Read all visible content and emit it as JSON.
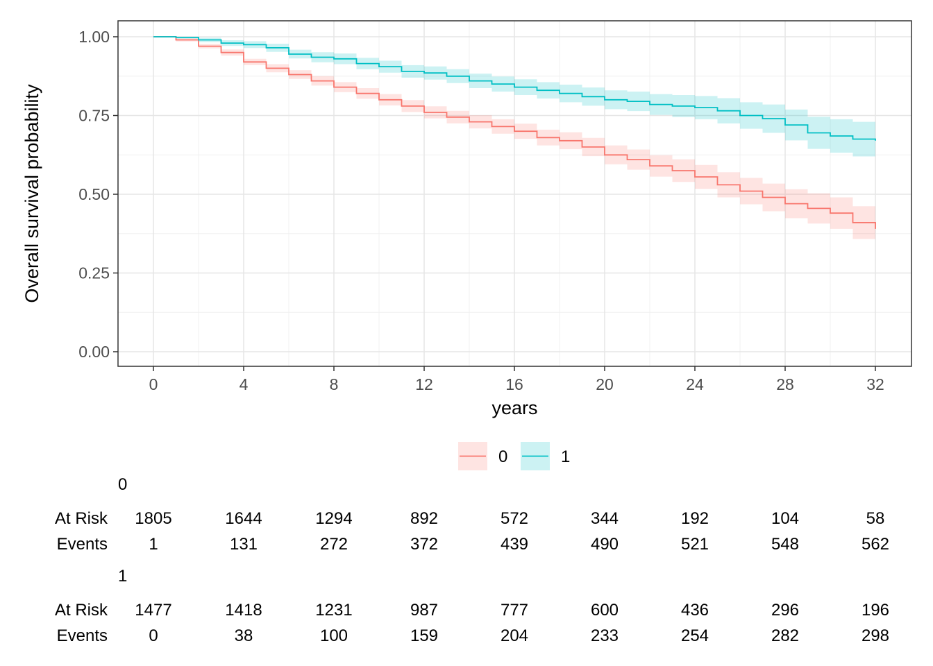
{
  "chart_data": {
    "type": "line",
    "subtype": "kaplan-meier",
    "title": "",
    "xlabel": "years",
    "ylabel": "Overall survival probability",
    "xlim": [
      0,
      32
    ],
    "ylim": [
      0,
      1
    ],
    "x_ticks": [
      0,
      4,
      8,
      12,
      16,
      20,
      24,
      28,
      32
    ],
    "y_ticks": [
      0,
      0.25,
      0.5,
      0.75,
      1.0
    ],
    "y_tick_labels": [
      "0.00",
      "0.25",
      "0.50",
      "0.75",
      "1.00"
    ],
    "grid": true,
    "confidence_band": true,
    "legend_position": "bottom",
    "series": [
      {
        "name": "0",
        "color": "#F8766D",
        "band_color": "#F8766D",
        "x": [
          0,
          1,
          2,
          3,
          4,
          5,
          6,
          7,
          8,
          9,
          10,
          11,
          12,
          13,
          14,
          15,
          16,
          17,
          18,
          19,
          20,
          21,
          22,
          23,
          24,
          25,
          26,
          27,
          28,
          29,
          30,
          31,
          32
        ],
        "y": [
          1.0,
          0.99,
          0.97,
          0.95,
          0.92,
          0.9,
          0.88,
          0.86,
          0.84,
          0.82,
          0.8,
          0.78,
          0.76,
          0.745,
          0.73,
          0.715,
          0.7,
          0.68,
          0.67,
          0.65,
          0.625,
          0.61,
          0.59,
          0.575,
          0.555,
          0.53,
          0.51,
          0.49,
          0.47,
          0.455,
          0.44,
          0.41,
          0.39
        ],
        "lower": [
          1.0,
          0.985,
          0.963,
          0.94,
          0.91,
          0.887,
          0.866,
          0.845,
          0.824,
          0.803,
          0.782,
          0.761,
          0.741,
          0.725,
          0.709,
          0.692,
          0.676,
          0.655,
          0.643,
          0.621,
          0.595,
          0.578,
          0.556,
          0.539,
          0.517,
          0.49,
          0.468,
          0.446,
          0.424,
          0.407,
          0.39,
          0.358,
          0.345
        ],
        "upper": [
          1.0,
          0.995,
          0.977,
          0.96,
          0.93,
          0.913,
          0.894,
          0.875,
          0.856,
          0.837,
          0.818,
          0.799,
          0.779,
          0.765,
          0.751,
          0.738,
          0.724,
          0.705,
          0.697,
          0.679,
          0.655,
          0.642,
          0.624,
          0.611,
          0.593,
          0.57,
          0.552,
          0.534,
          0.516,
          0.503,
          0.49,
          0.462,
          0.445
        ]
      },
      {
        "name": "1",
        "color": "#00BFC4",
        "band_color": "#00BFC4",
        "x": [
          0,
          1,
          2,
          3,
          4,
          5,
          6,
          7,
          8,
          9,
          10,
          11,
          12,
          13,
          14,
          15,
          16,
          17,
          18,
          19,
          20,
          21,
          22,
          23,
          24,
          25,
          26,
          27,
          28,
          29,
          30,
          31,
          32
        ],
        "y": [
          1.0,
          0.998,
          0.99,
          0.98,
          0.975,
          0.965,
          0.945,
          0.935,
          0.93,
          0.915,
          0.905,
          0.89,
          0.885,
          0.875,
          0.86,
          0.85,
          0.84,
          0.83,
          0.82,
          0.81,
          0.8,
          0.795,
          0.785,
          0.78,
          0.775,
          0.765,
          0.75,
          0.74,
          0.72,
          0.695,
          0.685,
          0.675,
          0.67
        ],
        "lower": [
          1.0,
          0.994,
          0.983,
          0.971,
          0.964,
          0.952,
          0.931,
          0.919,
          0.913,
          0.897,
          0.886,
          0.87,
          0.864,
          0.853,
          0.837,
          0.826,
          0.815,
          0.804,
          0.792,
          0.781,
          0.77,
          0.764,
          0.752,
          0.745,
          0.738,
          0.725,
          0.708,
          0.695,
          0.671,
          0.644,
          0.632,
          0.62,
          0.64
        ],
        "upper": [
          1.0,
          1.0,
          0.997,
          0.989,
          0.986,
          0.978,
          0.959,
          0.951,
          0.947,
          0.933,
          0.924,
          0.91,
          0.906,
          0.897,
          0.883,
          0.874,
          0.865,
          0.856,
          0.848,
          0.839,
          0.83,
          0.826,
          0.818,
          0.815,
          0.812,
          0.805,
          0.792,
          0.785,
          0.769,
          0.746,
          0.738,
          0.73,
          0.705
        ]
      }
    ],
    "risk_table": {
      "time_points": [
        0,
        4,
        8,
        12,
        16,
        20,
        24,
        28,
        32
      ],
      "groups": [
        {
          "name": "0",
          "rows": [
            {
              "label": "At Risk",
              "values": [
                "1805",
                "1644",
                "1294",
                "892",
                "572",
                "344",
                "192",
                "104",
                "58"
              ]
            },
            {
              "label": "Events",
              "values": [
                "1",
                "131",
                "272",
                "372",
                "439",
                "490",
                "521",
                "548",
                "562"
              ]
            }
          ]
        },
        {
          "name": "1",
          "rows": [
            {
              "label": "At Risk",
              "values": [
                "1477",
                "1418",
                "1231",
                "987",
                "777",
                "600",
                "436",
                "296",
                "196"
              ]
            },
            {
              "label": "Events",
              "values": [
                "0",
                "38",
                "100",
                "159",
                "204",
                "233",
                "254",
                "282",
                "298"
              ]
            }
          ]
        }
      ]
    }
  }
}
